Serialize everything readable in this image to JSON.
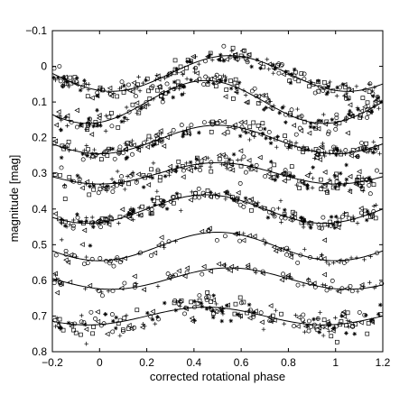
{
  "chart_data": {
    "type": "scatter",
    "xlabel": "corrected rotational phase",
    "ylabel": "magnitude  [mag]",
    "xlim": [
      -0.2,
      1.2
    ],
    "ylim": [
      0.8,
      -0.1
    ],
    "y_inverted": true,
    "grid": false,
    "legend": "none",
    "x_ticks": [
      -0.2,
      0,
      0.2,
      0.4,
      0.6,
      0.8,
      1,
      1.2
    ],
    "x_tick_labels": [
      "−0.2",
      "0",
      "0.2",
      "0.4",
      "0.6",
      "0.8",
      "1",
      "1.2"
    ],
    "y_ticks": [
      -0.1,
      0,
      0.1,
      0.2,
      0.3,
      0.4,
      0.5,
      0.6,
      0.7,
      0.8
    ],
    "y_tick_labels": [
      "−0.1",
      "0",
      "0.1",
      "0.2",
      "0.3",
      "0.4",
      "0.5",
      "0.6",
      "0.7",
      "0.8"
    ],
    "colors": {
      "axis": "#000000",
      "marks": "#000000",
      "background": "#ffffff"
    },
    "marker_shapes": [
      "plus",
      "square",
      "circle",
      "star",
      "triangle-left"
    ],
    "series": [
      {
        "mean": 0.02,
        "amplitude": 0.05,
        "peak_phase": 0.55,
        "density": "dense",
        "scatter": 0.012
      },
      {
        "mean": 0.1,
        "amplitude": 0.06,
        "peak_phase": 0.45,
        "density": "dense",
        "scatter": 0.014
      },
      {
        "mean": 0.205,
        "amplitude": 0.04,
        "peak_phase": 0.5,
        "density": "dense",
        "scatter": 0.012
      },
      {
        "mean": 0.3,
        "amplitude": 0.03,
        "peak_phase": 0.5,
        "density": "dense",
        "scatter": 0.016
      },
      {
        "mean": 0.4,
        "amplitude": 0.04,
        "peak_phase": 0.45,
        "density": "dense",
        "scatter": 0.01
      },
      {
        "mean": 0.505,
        "amplitude": 0.04,
        "peak_phase": 0.5,
        "density": "sparse",
        "scatter": 0.008
      },
      {
        "mean": 0.595,
        "amplitude": 0.03,
        "peak_phase": 0.55,
        "density": "sparse",
        "scatter": 0.008
      },
      {
        "mean": 0.7,
        "amplitude": 0.025,
        "peak_phase": 0.45,
        "density": "dense",
        "scatter": 0.018
      }
    ]
  }
}
